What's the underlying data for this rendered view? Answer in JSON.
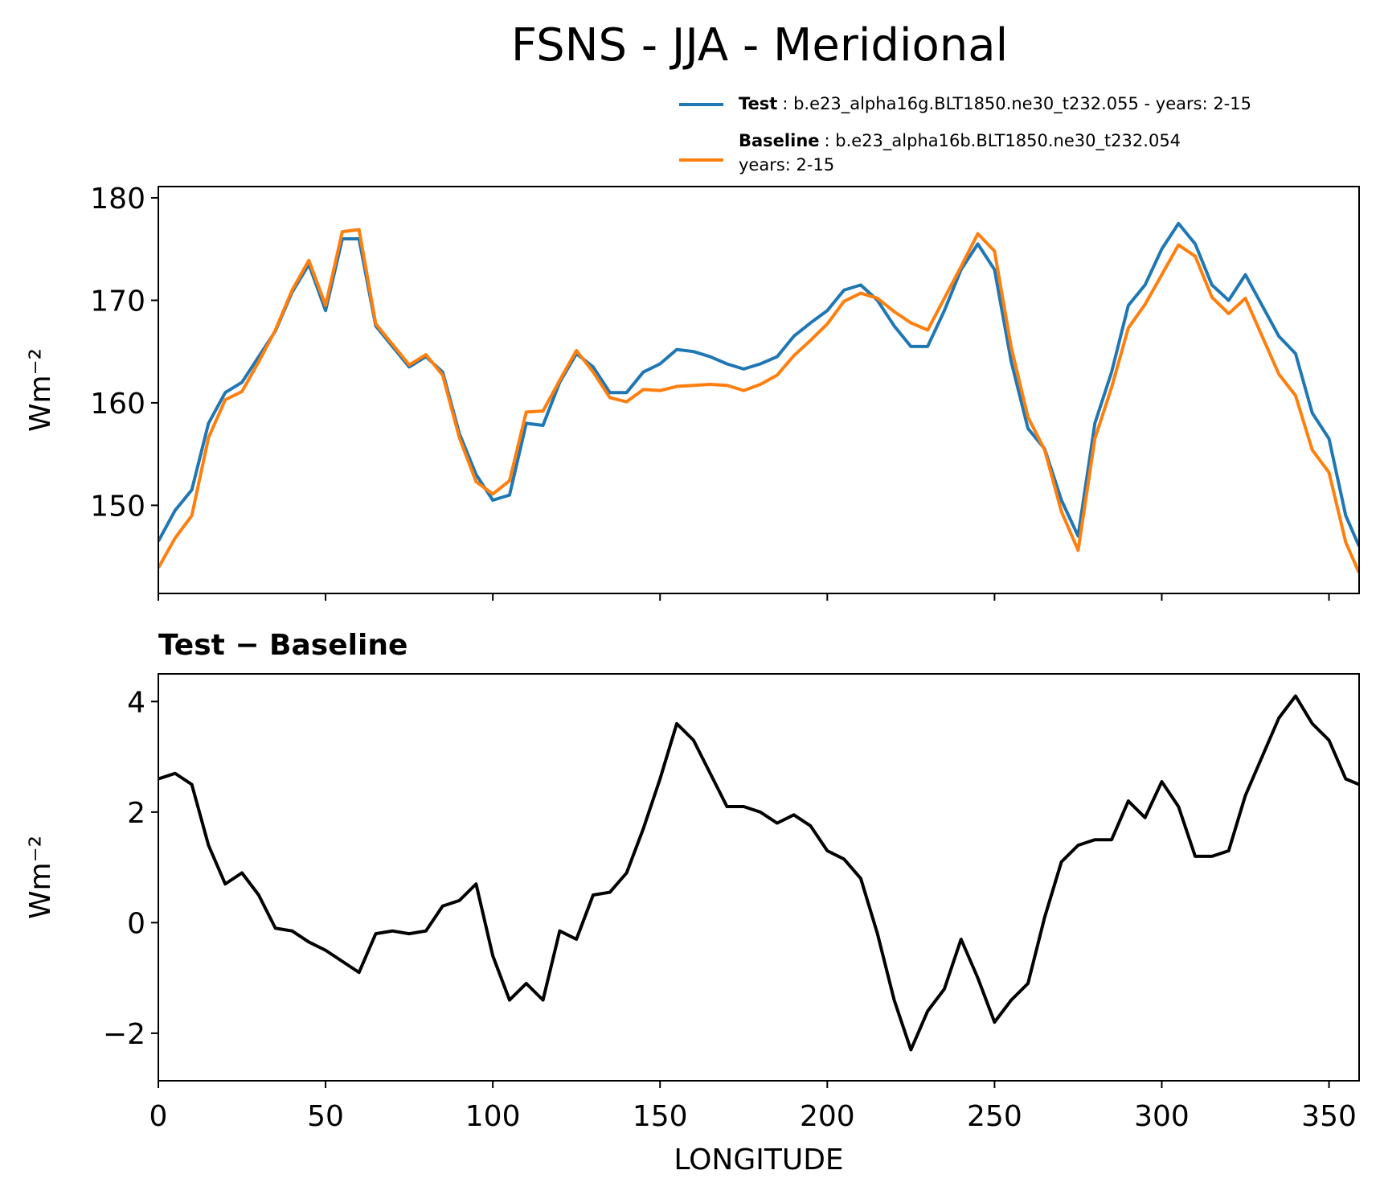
{
  "title": "FSNS - JJA - Meridional",
  "chart_data": [
    {
      "type": "line",
      "ylabel": "Wm⁻²",
      "x": [
        0,
        5,
        10,
        15,
        20,
        25,
        30,
        35,
        40,
        45,
        50,
        55,
        60,
        65,
        70,
        75,
        80,
        85,
        90,
        95,
        100,
        105,
        110,
        115,
        120,
        125,
        130,
        135,
        140,
        145,
        150,
        155,
        160,
        165,
        170,
        175,
        180,
        185,
        190,
        195,
        200,
        205,
        210,
        215,
        220,
        225,
        230,
        235,
        240,
        245,
        250,
        255,
        260,
        265,
        270,
        275,
        280,
        285,
        290,
        295,
        300,
        305,
        310,
        315,
        320,
        325,
        330,
        335,
        340,
        345,
        350,
        355,
        359
      ],
      "series": [
        {
          "name": "Test",
          "description": [
            ": b.e23_alpha16g.BLT1850.ne30_t232.055 - years: 2-15"
          ],
          "color": "#1f77b4",
          "values": [
            146.5,
            149.5,
            151.5,
            158,
            161,
            162,
            164.5,
            167,
            170.8,
            173.5,
            169,
            176,
            176,
            167.5,
            165.5,
            163.5,
            164.5,
            163,
            157,
            153,
            150.5,
            151,
            158,
            157.8,
            162,
            164.8,
            163.5,
            161,
            161,
            163,
            163.8,
            165.2,
            165,
            164.5,
            163.8,
            163.3,
            163.8,
            164.5,
            166.5,
            167.8,
            169,
            171,
            171.5,
            170,
            167.5,
            165.5,
            165.5,
            169,
            173,
            175.5,
            173,
            164,
            157.5,
            155.5,
            150.5,
            147,
            158,
            163,
            169.5,
            171.5,
            175,
            177.5,
            175.5,
            171.5,
            170,
            172.5,
            169.5,
            166.5,
            164.8,
            159,
            156.5,
            149,
            146
          ]
        },
        {
          "name": "Baseline",
          "description": [
            ": b.e23_alpha16b.BLT1850.ne30_t232.054",
            "years: 2-15"
          ],
          "color": "#ff7f0e",
          "values": [
            143.9,
            146.8,
            149,
            156.6,
            160.3,
            161.1,
            164,
            167.1,
            171,
            173.9,
            169.5,
            176.7,
            176.9,
            167.7,
            165.7,
            163.7,
            164.7,
            162.7,
            156.6,
            152.3,
            151.1,
            152.4,
            159.1,
            159.2,
            162.2,
            165.1,
            163,
            160.5,
            160.1,
            161.3,
            161.2,
            161.6,
            161.7,
            161.8,
            161.7,
            161.2,
            161.8,
            162.7,
            164.6,
            166.1,
            167.7,
            169.9,
            170.7,
            170.2,
            168.9,
            167.8,
            167.1,
            170.2,
            173.3,
            176.5,
            174.8,
            165.4,
            158.6,
            155.4,
            149.4,
            145.6,
            156.5,
            161.5,
            167.3,
            169.6,
            172.5,
            175.4,
            174.3,
            170.3,
            168.7,
            170.2,
            166.5,
            162.8,
            160.7,
            155.4,
            153.2,
            146.4,
            143.4
          ]
        }
      ],
      "xlim": [
        0,
        359
      ],
      "ylim": [
        141.4,
        181.1
      ],
      "xticks": [
        0,
        50,
        100,
        150,
        200,
        250,
        300,
        350
      ],
      "yticks": [
        150,
        160,
        170,
        180
      ],
      "legend": "upper right"
    },
    {
      "type": "line",
      "title": "Test − Baseline",
      "xlabel": "LONGITUDE",
      "ylabel": "Wm⁻²",
      "x": [
        0,
        5,
        10,
        15,
        20,
        25,
        30,
        35,
        40,
        45,
        50,
        55,
        60,
        65,
        70,
        75,
        80,
        85,
        90,
        95,
        100,
        105,
        110,
        115,
        120,
        125,
        130,
        135,
        140,
        145,
        150,
        155,
        160,
        165,
        170,
        175,
        180,
        185,
        190,
        195,
        200,
        205,
        210,
        215,
        220,
        225,
        230,
        235,
        240,
        245,
        250,
        255,
        260,
        265,
        270,
        275,
        280,
        285,
        290,
        295,
        300,
        305,
        310,
        315,
        320,
        325,
        330,
        335,
        340,
        345,
        350,
        355,
        359
      ],
      "series": [
        {
          "color": "#000000",
          "values": [
            2.6,
            2.7,
            2.5,
            1.4,
            0.7,
            0.9,
            0.5,
            -0.1,
            -0.15,
            -0.35,
            -0.5,
            -0.7,
            -0.9,
            -0.2,
            -0.15,
            -0.2,
            -0.15,
            0.3,
            0.4,
            0.7,
            -0.6,
            -1.4,
            -1.1,
            -1.4,
            -0.15,
            -0.3,
            0.5,
            0.55,
            0.9,
            1.7,
            2.6,
            3.6,
            3.3,
            2.7,
            2.1,
            2.1,
            2,
            1.8,
            1.95,
            1.75,
            1.3,
            1.15,
            0.8,
            -0.2,
            -1.4,
            -2.3,
            -1.6,
            -1.2,
            -0.3,
            -1,
            -1.8,
            -1.4,
            -1.1,
            0.1,
            1.1,
            1.4,
            1.5,
            1.5,
            2.2,
            1.9,
            2.55,
            2.1,
            1.2,
            1.2,
            1.3,
            2.3,
            3,
            3.7,
            4.1,
            3.6,
            3.3,
            2.6,
            2.5
          ]
        }
      ],
      "xlim": [
        0,
        359
      ],
      "ylim": [
        -2.86,
        4.5
      ],
      "xticks": [
        0,
        50,
        100,
        150,
        200,
        250,
        300,
        350
      ],
      "yticks": [
        {
          "value": -2,
          "label": "−2"
        },
        0,
        2,
        4
      ]
    }
  ]
}
